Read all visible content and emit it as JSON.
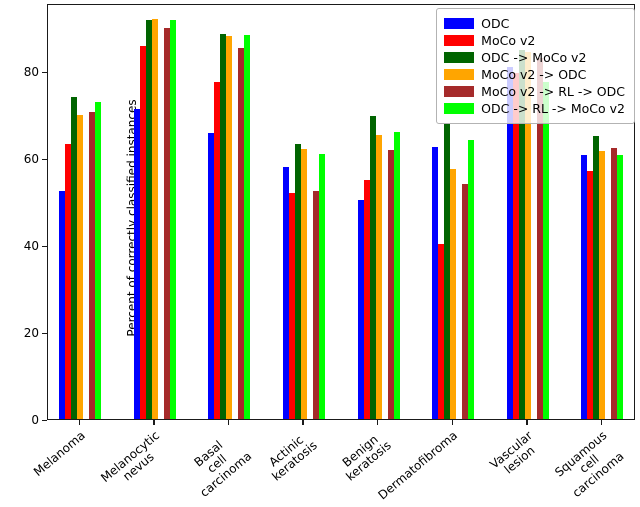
{
  "figure": {
    "ylabel": "Percent of correctly classified instances",
    "background_color": "#ffffff",
    "axis_color": "#1a1a1a",
    "legend_background": "rgba(255,255,255,0.8)"
  },
  "chart_data": {
    "type": "bar",
    "title": "",
    "xlabel": "",
    "ylabel": "Percent of correctly classified instances",
    "ylim": [
      0,
      95.7
    ],
    "yticks": [
      0,
      20,
      40,
      60,
      80
    ],
    "grid": false,
    "legend_position": "upper right",
    "bar_group_note": "six bars per group with a one-bar-width empty slot between 4th and 5th bars",
    "categories": [
      "Melanoma",
      "Melanocytic\nnevus",
      "Basal\ncell\ncarcinoma",
      "Actinic\nkeratosis",
      "Benign\nkeratosis",
      "Dermatofibroma",
      "Vascular\nlesion",
      "Squamous\ncell\ncarcinoma"
    ],
    "series": [
      {
        "name": "ODC",
        "color": "#0000ff",
        "values": [
          52.4,
          71.3,
          65.8,
          57.9,
          50.3,
          62.6,
          81.0,
          60.7
        ]
      },
      {
        "name": "MoCo v2",
        "color": "#ff0000",
        "values": [
          63.2,
          85.9,
          77.5,
          51.9,
          54.9,
          40.3,
          79.5,
          57.1
        ]
      },
      {
        "name": "ODC -> MoCo v2",
        "color": "#006400",
        "values": [
          74.0,
          91.8,
          88.6,
          63.3,
          69.8,
          67.9,
          85.0,
          65.1
        ]
      },
      {
        "name": "MoCo v2 -> ODC",
        "color": "#ffa500",
        "values": [
          70.0,
          92.1,
          88.2,
          62.1,
          65.3,
          57.5,
          84.5,
          61.7
        ]
      },
      {
        "name": "MoCo v2 -> RL -> ODC",
        "color": "#a52a2a",
        "values": [
          70.7,
          90.0,
          85.4,
          52.5,
          62.0,
          54.1,
          83.0,
          62.3
        ]
      },
      {
        "name": "ODC -> RL -> MoCo v2",
        "color": "#00ff00",
        "values": [
          73.0,
          91.9,
          88.4,
          60.9,
          66.0,
          64.3,
          77.5,
          60.7
        ]
      }
    ]
  }
}
